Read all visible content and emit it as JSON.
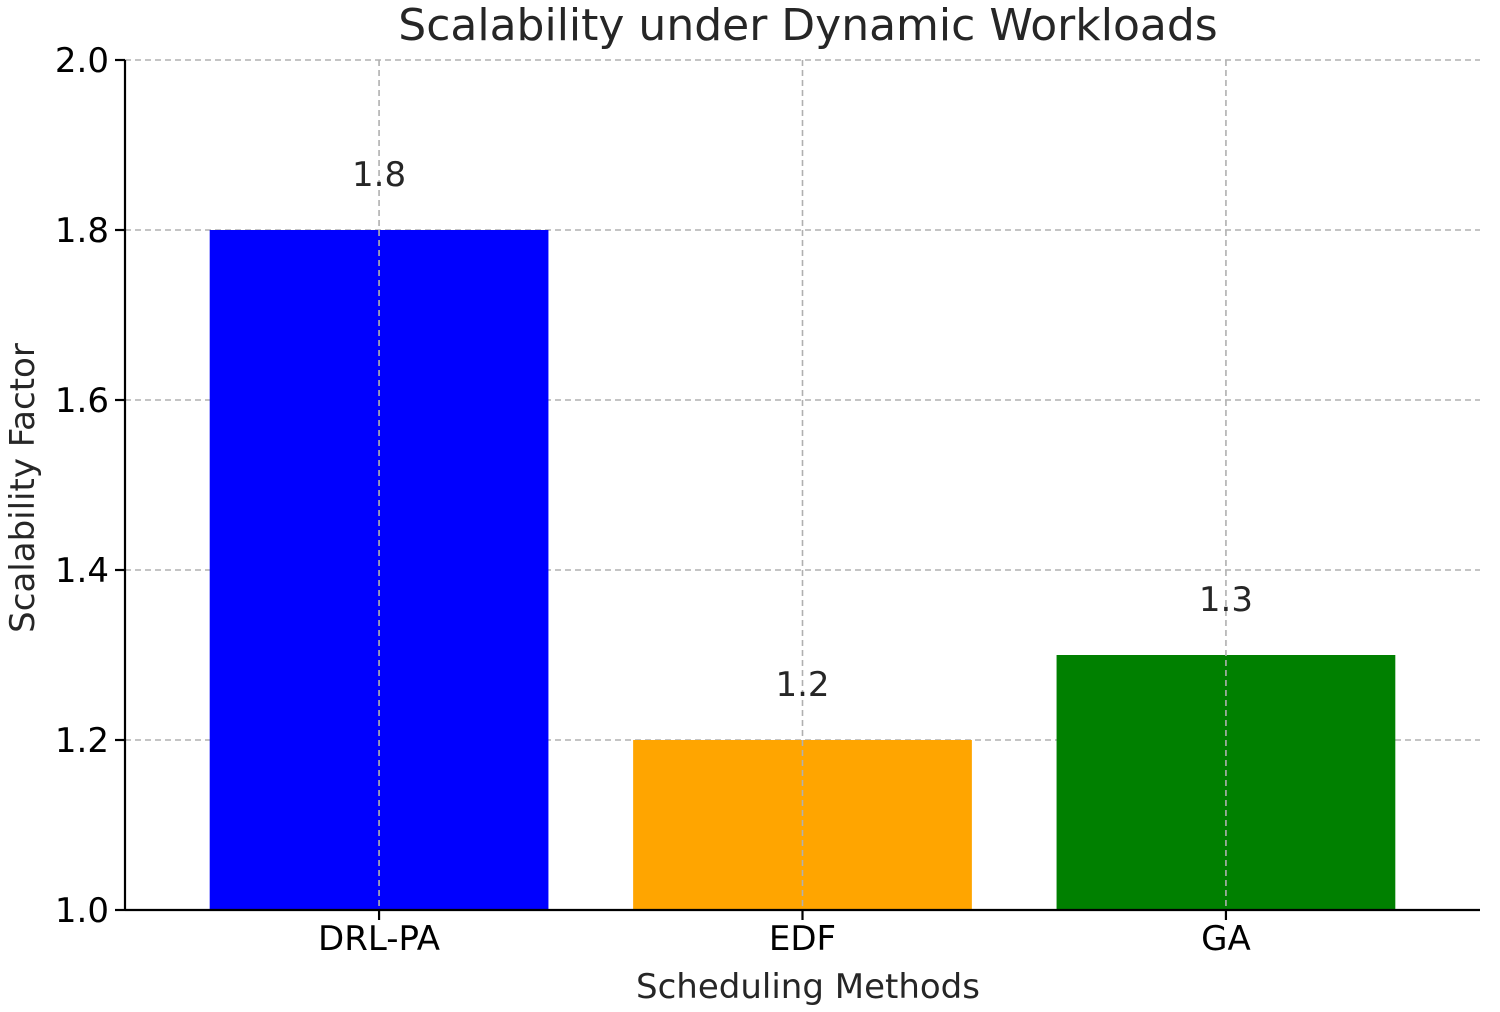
{
  "chart_data": {
    "type": "bar",
    "title": "Scalability under Dynamic Workloads",
    "xlabel": "Scheduling Methods",
    "ylabel": "Scalability Factor",
    "categories": [
      "DRL-PA",
      "EDF",
      "GA"
    ],
    "values": [
      1.8,
      1.2,
      1.3
    ],
    "value_labels": [
      "1.8",
      "1.2",
      "1.3"
    ],
    "colors": [
      "#0000ff",
      "#ffa500",
      "#008000"
    ],
    "ylim": [
      1.0,
      2.0
    ],
    "yticks": [
      1.0,
      1.2,
      1.4,
      1.6,
      1.8,
      2.0
    ],
    "ytick_labels": [
      "1.0",
      "1.2",
      "1.4",
      "1.6",
      "1.8",
      "2.0"
    ],
    "grid": true,
    "grid_color": "#b0b0b0"
  }
}
